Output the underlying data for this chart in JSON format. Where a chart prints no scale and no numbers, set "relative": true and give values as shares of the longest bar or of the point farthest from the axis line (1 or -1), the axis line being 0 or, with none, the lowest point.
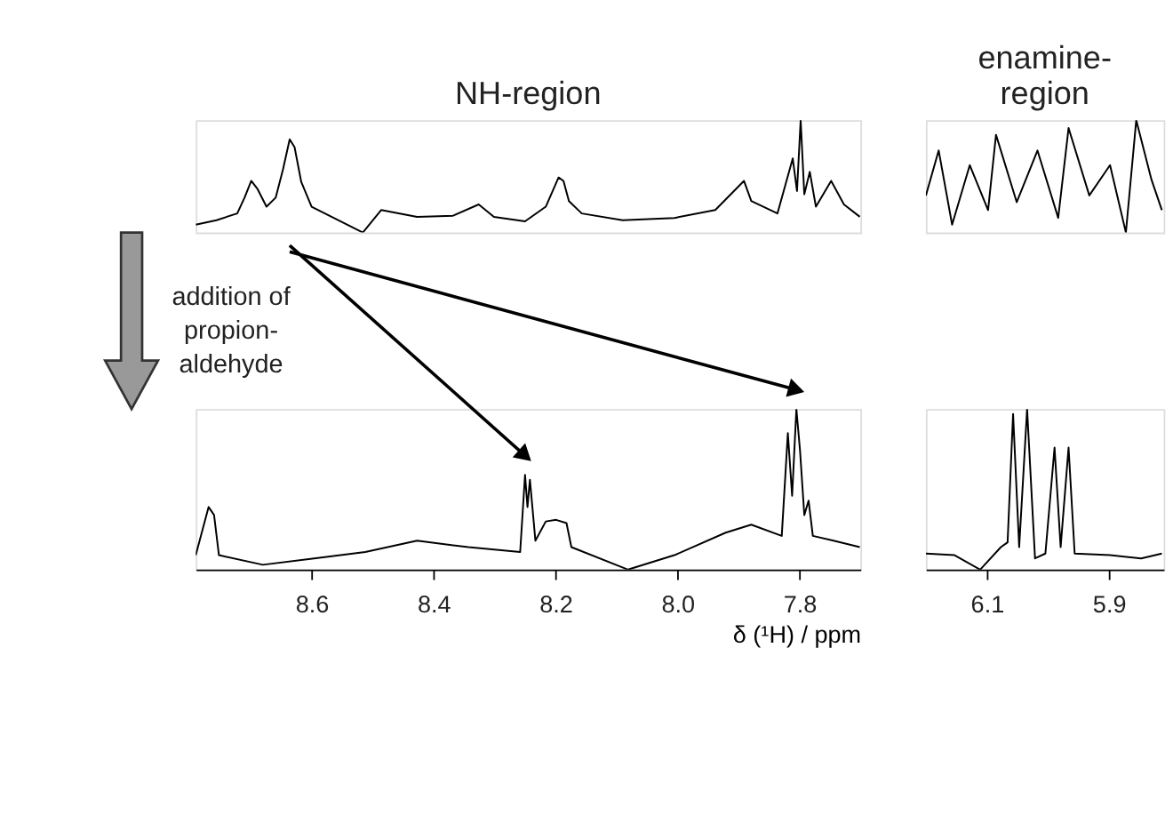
{
  "chart_data": [
    {
      "type": "line",
      "title": "NH-region",
      "relative": true,
      "color": "#000000",
      "xlim": [
        8.79,
        7.7
      ],
      "tick_labels": false,
      "annotations": [
        "addition of\npropion-\naldehyde"
      ],
      "x": [
        8.79,
        8.756,
        8.722,
        8.71,
        8.699,
        8.689,
        8.674,
        8.659,
        8.647,
        8.636,
        8.628,
        8.617,
        8.6,
        8.571,
        8.516,
        8.486,
        8.427,
        8.368,
        8.326,
        8.301,
        8.25,
        8.216,
        8.195,
        8.187,
        8.178,
        8.157,
        8.09,
        8.005,
        7.938,
        7.891,
        7.879,
        7.836,
        7.811,
        7.804,
        7.798,
        7.792,
        7.783,
        7.773,
        7.748,
        7.727,
        7.701
      ],
      "values": [
        0.07,
        0.11,
        0.17,
        0.31,
        0.46,
        0.39,
        0.23,
        0.31,
        0.56,
        0.83,
        0.76,
        0.45,
        0.23,
        0.15,
        0.0,
        0.2,
        0.14,
        0.15,
        0.25,
        0.14,
        0.1,
        0.23,
        0.49,
        0.46,
        0.28,
        0.17,
        0.11,
        0.13,
        0.2,
        0.46,
        0.28,
        0.17,
        0.66,
        0.37,
        1.0,
        0.34,
        0.54,
        0.23,
        0.46,
        0.25,
        0.14
      ]
    },
    {
      "type": "line",
      "title": "enamine-\nregion",
      "relative": true,
      "color": "#000000",
      "xlim": [
        6.2,
        5.81
      ],
      "tick_labels": false,
      "x": [
        6.2,
        6.179,
        6.157,
        6.128,
        6.098,
        6.085,
        6.051,
        6.017,
        5.983,
        5.966,
        5.932,
        5.898,
        5.872,
        5.855,
        5.83,
        5.813
      ],
      "values": [
        0.33,
        0.73,
        0.07,
        0.6,
        0.2,
        0.87,
        0.27,
        0.73,
        0.13,
        0.93,
        0.33,
        0.6,
        0.0,
        1.0,
        0.47,
        0.2
      ]
    },
    {
      "type": "line",
      "relative": true,
      "color": "#000000",
      "xlim": [
        8.79,
        7.7
      ],
      "xticks": [
        8.6,
        8.4,
        8.2,
        {
          "value": 8.0,
          "label": "8.0"
        },
        7.8
      ],
      "xlabel": "δ (¹H) / ppm",
      "x": [
        8.79,
        8.769,
        8.76,
        8.752,
        8.68,
        8.596,
        8.512,
        8.427,
        8.343,
        8.258,
        8.25,
        8.246,
        8.242,
        8.233,
        8.216,
        8.199,
        8.182,
        8.174,
        8.081,
        8.005,
        7.921,
        7.879,
        7.829,
        7.819,
        7.812,
        7.805,
        7.799,
        7.792,
        7.785,
        7.778,
        7.744,
        7.701
      ],
      "values": [
        0.09,
        0.39,
        0.34,
        0.09,
        0.03,
        0.07,
        0.11,
        0.18,
        0.14,
        0.11,
        0.59,
        0.39,
        0.56,
        0.18,
        0.3,
        0.31,
        0.29,
        0.14,
        0.0,
        0.09,
        0.23,
        0.28,
        0.21,
        0.85,
        0.46,
        1.0,
        0.74,
        0.34,
        0.43,
        0.21,
        0.18,
        0.14
      ]
    },
    {
      "type": "line",
      "relative": true,
      "color": "#000000",
      "xlim": [
        6.2,
        5.81
      ],
      "xticks": [
        6.1,
        5.9
      ],
      "x": [
        6.2,
        6.153,
        6.111,
        6.077,
        6.066,
        6.057,
        6.047,
        6.034,
        6.021,
        6.004,
        5.989,
        5.979,
        5.966,
        5.956,
        5.898,
        5.847,
        5.813
      ],
      "values": [
        0.1,
        0.09,
        0.0,
        0.14,
        0.17,
        0.97,
        0.14,
        1.0,
        0.07,
        0.1,
        0.76,
        0.14,
        0.76,
        0.1,
        0.09,
        0.07,
        0.1
      ]
    }
  ]
}
